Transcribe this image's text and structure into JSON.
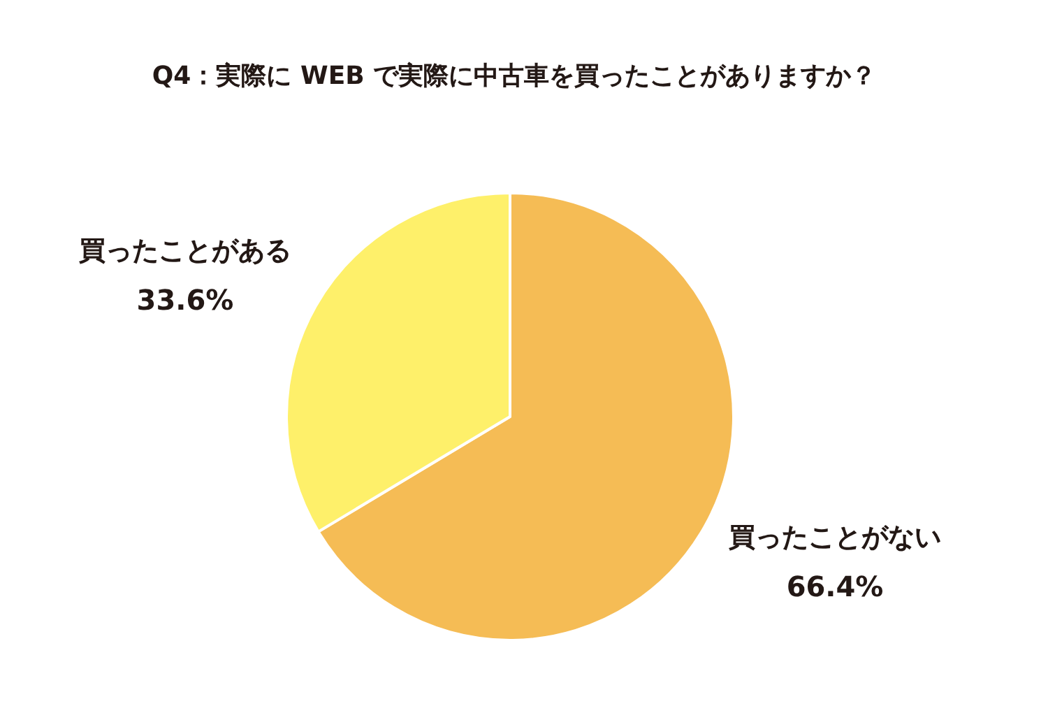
{
  "chart_data": {
    "type": "pie",
    "title": "Q4：実際に WEB で実際に中古車を買ったことがありますか？",
    "categories": [
      "買ったことがない",
      "買ったことがある"
    ],
    "values": [
      66.4,
      33.6
    ],
    "colors": [
      "#f5bc55",
      "#fef06a"
    ],
    "value_labels": [
      "66.4%",
      "33.6%"
    ]
  }
}
